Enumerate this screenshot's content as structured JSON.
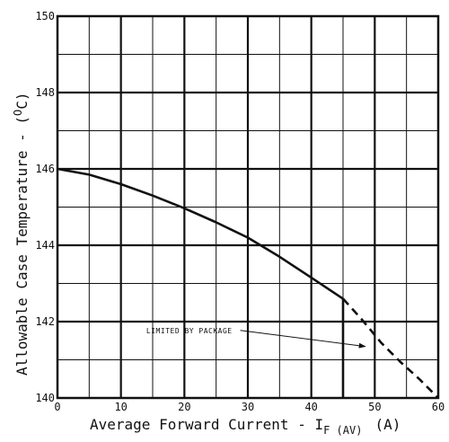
{
  "chart_data": {
    "type": "line",
    "xlabel": "Average Forward Current - I",
    "xlabel_sub": "F (AV)",
    "xlabel_unit": "(A)",
    "ylabel": "Allowable Case Temperature - (",
    "ylabel_sup": "O",
    "ylabel_unit": "C)",
    "xlim": [
      0,
      60
    ],
    "ylim": [
      140,
      150
    ],
    "x_ticks": [
      0,
      10,
      20,
      30,
      40,
      50,
      60
    ],
    "y_ticks": [
      140,
      142,
      144,
      146,
      148,
      150
    ],
    "x_tick_labels": [
      "0",
      "10",
      "20",
      "30",
      "40",
      "50",
      "60"
    ],
    "y_tick_labels": [
      "140",
      "142",
      "144",
      "146",
      "148",
      "150"
    ],
    "grid": true,
    "series": [
      {
        "style": "solid",
        "x": [
          0,
          5,
          10,
          15,
          20,
          25,
          30,
          35,
          40,
          45
        ],
        "y": [
          146.0,
          145.85,
          145.6,
          145.3,
          144.97,
          144.6,
          144.2,
          143.7,
          143.15,
          142.6
        ]
      },
      {
        "style": "solid",
        "x": [
          45,
          45
        ],
        "y": [
          142.6,
          140.0
        ]
      },
      {
        "style": "dashed",
        "x": [
          45,
          48,
          51,
          54,
          57,
          60
        ],
        "y": [
          142.6,
          142.05,
          141.45,
          140.95,
          140.5,
          140.0
        ]
      }
    ],
    "annotations": [
      {
        "text": "LIMITED BY PACKAGE",
        "x": 14,
        "y": 141.7,
        "arrow_to": [
          48.5,
          141.35
        ]
      }
    ]
  }
}
